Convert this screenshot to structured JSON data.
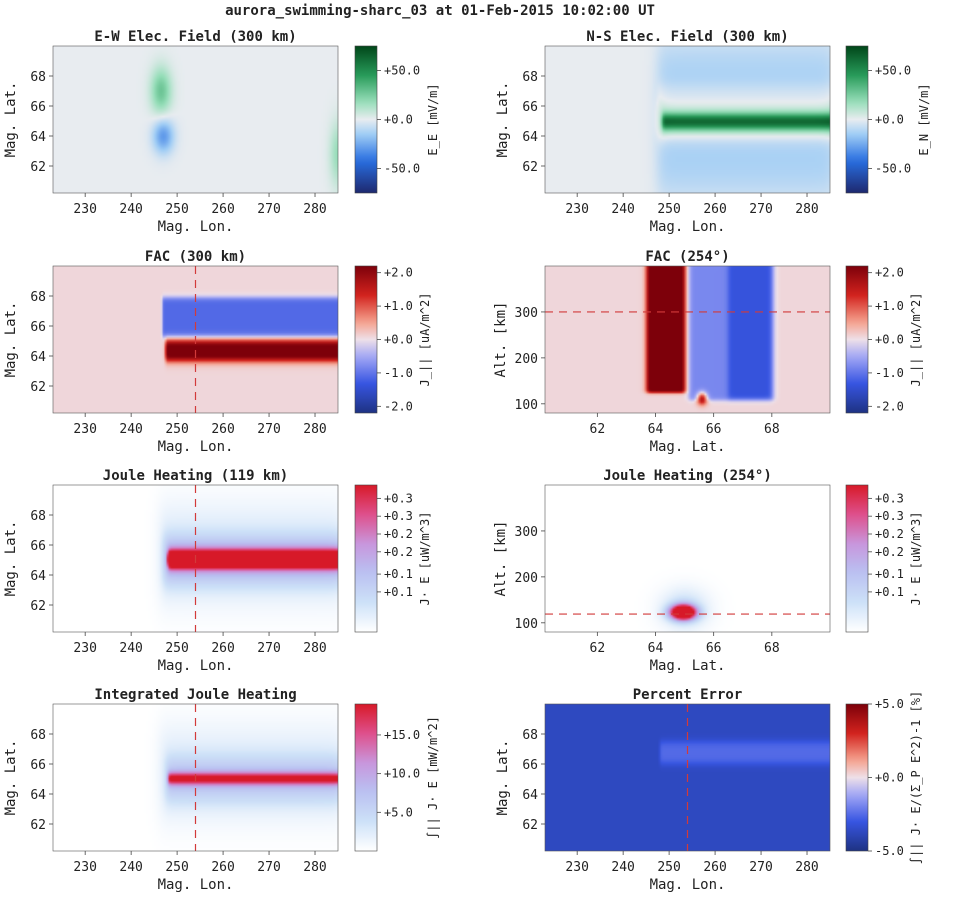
{
  "suptitle": "aurora_swimming-sharc_03 at 01-Feb-2015 10:02:00 UT",
  "chart_data": [
    {
      "type": "heatmap",
      "id": "ew",
      "title": "E-W Elec. Field (300 km)",
      "xlabel": "Mag. Lon.",
      "ylabel": "Mag. Lat.",
      "xlim": [
        223,
        285
      ],
      "ylim": [
        60.2,
        70
      ],
      "xticks": [
        230,
        240,
        250,
        260,
        270,
        280
      ],
      "yticks": [
        62,
        64,
        66,
        68
      ],
      "colorbar": {
        "cmap": "green_blue",
        "label": "E_E [mV/m]",
        "min": -75,
        "max": 75,
        "ticks": [
          {
            "v": 50,
            "label": "+50.0"
          },
          {
            "v": 0,
            "label": "+0.0"
          },
          {
            "v": -50,
            "label": "-50.0"
          }
        ]
      },
      "background": 0,
      "features": [
        {
          "kind": "blob",
          "x": 246.5,
          "y": 67.0,
          "sx": 1.6,
          "sy": 1.1,
          "val": 28
        },
        {
          "kind": "blob",
          "x": 247.0,
          "y": 64.0,
          "sx": 1.6,
          "sy": 0.8,
          "val": -30
        },
        {
          "kind": "blob",
          "x": 285.0,
          "y": 62.8,
          "sx": 1.3,
          "sy": 1.5,
          "val": 18
        }
      ]
    },
    {
      "type": "heatmap",
      "id": "ns",
      "title": "N-S Elec. Field (300 km)",
      "xlabel": "Mag. Lon.",
      "ylabel": "Mag. Lat.",
      "xlim": [
        223,
        285
      ],
      "ylim": [
        60.2,
        70
      ],
      "xticks": [
        230,
        240,
        250,
        260,
        270,
        280
      ],
      "yticks": [
        62,
        64,
        66,
        68
      ],
      "colorbar": {
        "cmap": "green_blue",
        "label": "E_N [mV/m]",
        "min": -75,
        "max": 75,
        "ticks": [
          {
            "v": 50,
            "label": "+50.0"
          },
          {
            "v": 0,
            "label": "+0.0"
          },
          {
            "v": -50,
            "label": "-50.0"
          }
        ]
      },
      "background": 0,
      "features": [
        {
          "kind": "band",
          "x0": 247.5,
          "x1": 286,
          "y0": 60.2,
          "y1": 70,
          "val": -14,
          "blur": 0.8
        },
        {
          "kind": "band",
          "x0": 247.5,
          "x1": 286,
          "y0": 66.4,
          "y1": 67.4,
          "val": 8,
          "blur": 0.3
        },
        {
          "kind": "band",
          "x0": 247.5,
          "x1": 286,
          "y0": 63.9,
          "y1": 66.3,
          "val": 20,
          "blur": 0.35
        },
        {
          "kind": "band",
          "x0": 248.5,
          "x1": 286,
          "y0": 64.55,
          "y1": 65.35,
          "val": 75,
          "blur": 0.2
        }
      ]
    },
    {
      "type": "heatmap",
      "id": "fac",
      "title": "FAC (300 km)",
      "xlabel": "Mag. Lon.",
      "ylabel": "Mag. Lat.",
      "xlim": [
        223,
        285
      ],
      "ylim": [
        60.2,
        70
      ],
      "xticks": [
        230,
        240,
        250,
        260,
        270,
        280
      ],
      "yticks": [
        62,
        64,
        66,
        68
      ],
      "colorbar": {
        "cmap": "red_blue",
        "label": "J_|| [uA/m^2]",
        "min": -2.2,
        "max": 2.2,
        "ticks": [
          {
            "v": 2,
            "label": "+2.0"
          },
          {
            "v": 1,
            "label": "+1.0"
          },
          {
            "v": 0,
            "label": "+0.0"
          },
          {
            "v": -1,
            "label": "-1.0"
          },
          {
            "v": -2,
            "label": "-2.0"
          }
        ]
      },
      "background": 0.08,
      "features": [
        {
          "kind": "band",
          "x0": 246.8,
          "x1": 286,
          "y0": 65.3,
          "y1": 67.9,
          "val": -1.2,
          "blur": 0.1
        },
        {
          "kind": "band",
          "x0": 247.5,
          "x1": 286,
          "y0": 63.7,
          "y1": 65.0,
          "val": 2.4,
          "blur": 0.15
        }
      ],
      "refline": {
        "axis": "x",
        "value": 254
      }
    },
    {
      "type": "heatmap",
      "id": "facalt",
      "title": "FAC (254°)",
      "xlabel": "Mag. Lat.",
      "ylabel": "Alt. [km]",
      "xlim": [
        60.2,
        70
      ],
      "ylim": [
        80,
        400
      ],
      "xticks": [
        62,
        64,
        66,
        68
      ],
      "yticks": [
        100,
        200,
        300
      ],
      "colorbar": {
        "cmap": "red_blue",
        "label": "J_|| [uA/m^2]",
        "min": -2.2,
        "max": 2.2,
        "ticks": [
          {
            "v": 2,
            "label": "+2.0"
          },
          {
            "v": 1,
            "label": "+1.0"
          },
          {
            "v": 0,
            "label": "+0.0"
          },
          {
            "v": -1,
            "label": "-1.0"
          },
          {
            "v": -2,
            "label": "-2.0"
          }
        ]
      },
      "background": 0.08,
      "features": [
        {
          "kind": "band",
          "x0": 63.7,
          "x1": 65.0,
          "y0": 125,
          "y1": 410,
          "val": 2.5,
          "blur": 0.06
        },
        {
          "kind": "band",
          "x0": 65.15,
          "x1": 68.05,
          "y0": 108,
          "y1": 410,
          "val": -0.9,
          "blur": 0.08
        },
        {
          "kind": "band",
          "x0": 66.5,
          "x1": 68.0,
          "y0": 110,
          "y1": 410,
          "val": -0.55,
          "blur": 0.1
        },
        {
          "kind": "blob",
          "x": 65.6,
          "y": 112,
          "sx": 0.12,
          "sy": 9,
          "val": 2.2
        }
      ],
      "refline": {
        "axis": "y",
        "value": 300
      }
    },
    {
      "type": "heatmap",
      "id": "jh",
      "title": "Joule Heating (119 km)",
      "xlabel": "Mag. Lon.",
      "ylabel": "Mag. Lat.",
      "xlim": [
        223,
        285
      ],
      "ylim": [
        60.2,
        70
      ],
      "xticks": [
        230,
        240,
        250,
        260,
        270,
        280
      ],
      "yticks": [
        62,
        64,
        66,
        68
      ],
      "colorbar": {
        "cmap": "white_blue_red",
        "label": "J· E [uW/m^3]",
        "min": 0,
        "max": 0.33,
        "ticks": [
          {
            "v": 0.3,
            "label": "+0.3"
          },
          {
            "v": 0.26,
            "label": "+0.3"
          },
          {
            "v": 0.22,
            "label": "+0.2"
          },
          {
            "v": 0.18,
            "label": "+0.2"
          },
          {
            "v": 0.13,
            "label": "+0.1"
          },
          {
            "v": 0.09,
            "label": "+0.1"
          }
        ]
      },
      "background": 0,
      "features": [
        {
          "kind": "band",
          "x0": 246,
          "x1": 286,
          "y0": 62.2,
          "y1": 68.6,
          "val": 0.04,
          "blur": 0.8
        },
        {
          "kind": "band",
          "x0": 247,
          "x1": 286,
          "y0": 63.4,
          "y1": 66.6,
          "val": 0.1,
          "blur": 0.4
        },
        {
          "kind": "band",
          "x0": 248,
          "x1": 286,
          "y0": 64.6,
          "y1": 65.5,
          "val": 0.55,
          "blur": 0.2
        }
      ],
      "refline": {
        "axis": "x",
        "value": 254
      }
    },
    {
      "type": "heatmap",
      "id": "jhalt",
      "title": "Joule Heating (254°)",
      "xlabel": "Mag. Lat.",
      "ylabel": "Alt. [km]",
      "xlim": [
        60.2,
        70
      ],
      "ylim": [
        80,
        400
      ],
      "xticks": [
        62,
        64,
        66,
        68
      ],
      "yticks": [
        100,
        200,
        300
      ],
      "colorbar": {
        "cmap": "white_blue_red",
        "label": "J· E [uW/m^3]",
        "min": 0,
        "max": 0.33,
        "ticks": [
          {
            "v": 0.3,
            "label": "+0.3"
          },
          {
            "v": 0.26,
            "label": "+0.3"
          },
          {
            "v": 0.22,
            "label": "+0.2"
          },
          {
            "v": 0.18,
            "label": "+0.2"
          },
          {
            "v": 0.13,
            "label": "+0.1"
          },
          {
            "v": 0.09,
            "label": "+0.1"
          }
        ]
      },
      "background": 0,
      "features": [
        {
          "kind": "blob",
          "x": 65.0,
          "y": 130,
          "sx": 0.55,
          "sy": 30,
          "val": 0.08
        },
        {
          "kind": "blob",
          "x": 64.95,
          "y": 123,
          "sx": 0.3,
          "sy": 11,
          "val": 0.55
        }
      ],
      "refline": {
        "axis": "y",
        "value": 119
      }
    },
    {
      "type": "heatmap",
      "id": "ijh",
      "title": "Integrated Joule Heating",
      "xlabel": "Mag. Lon.",
      "ylabel": "Mag. Lat.",
      "xlim": [
        223,
        285
      ],
      "ylim": [
        60.2,
        70
      ],
      "xticks": [
        230,
        240,
        250,
        260,
        270,
        280
      ],
      "yticks": [
        62,
        64,
        66,
        68
      ],
      "colorbar": {
        "cmap": "white_blue_red",
        "label": "∫|| J· E [mW/m^2]",
        "min": 0,
        "max": 19,
        "ticks": [
          {
            "v": 15,
            "label": "+15.0"
          },
          {
            "v": 10,
            "label": "+10.0"
          },
          {
            "v": 5,
            "label": "+5.0"
          }
        ]
      },
      "background": 0,
      "features": [
        {
          "kind": "band",
          "x0": 246,
          "x1": 286,
          "y0": 62.4,
          "y1": 68.4,
          "val": 2.2,
          "blur": 0.8
        },
        {
          "kind": "band",
          "x0": 247.5,
          "x1": 286,
          "y0": 63.6,
          "y1": 66.4,
          "val": 5,
          "blur": 0.4
        },
        {
          "kind": "band",
          "x0": 248,
          "x1": 286,
          "y0": 64.75,
          "y1": 65.3,
          "val": 19,
          "blur": 0.15
        }
      ],
      "refline": {
        "axis": "x",
        "value": 254
      }
    },
    {
      "type": "heatmap",
      "id": "perr",
      "title": "Percent Error",
      "xlabel": "Mag. Lon.",
      "ylabel": "Mag. Lat.",
      "xlim": [
        223,
        285
      ],
      "ylim": [
        60.2,
        70
      ],
      "xticks": [
        230,
        240,
        250,
        260,
        270,
        280
      ],
      "yticks": [
        62,
        64,
        66,
        68
      ],
      "colorbar": {
        "cmap": "red_blue",
        "label": "∫|| J· E/(Σ_P E^2)-1 [%]",
        "min": -5,
        "max": 5,
        "ticks": [
          {
            "v": 5,
            "label": "+5.0"
          },
          {
            "v": 0,
            "label": "+0.0"
          },
          {
            "v": -5,
            "label": "-5.0"
          }
        ]
      },
      "background": -3.7,
      "features": [
        {
          "kind": "band",
          "x0": 248,
          "x1": 286,
          "y0": 66.0,
          "y1": 67.5,
          "val": 1.2,
          "blur": 0.15
        }
      ],
      "refline": {
        "axis": "x",
        "value": 254
      }
    }
  ]
}
